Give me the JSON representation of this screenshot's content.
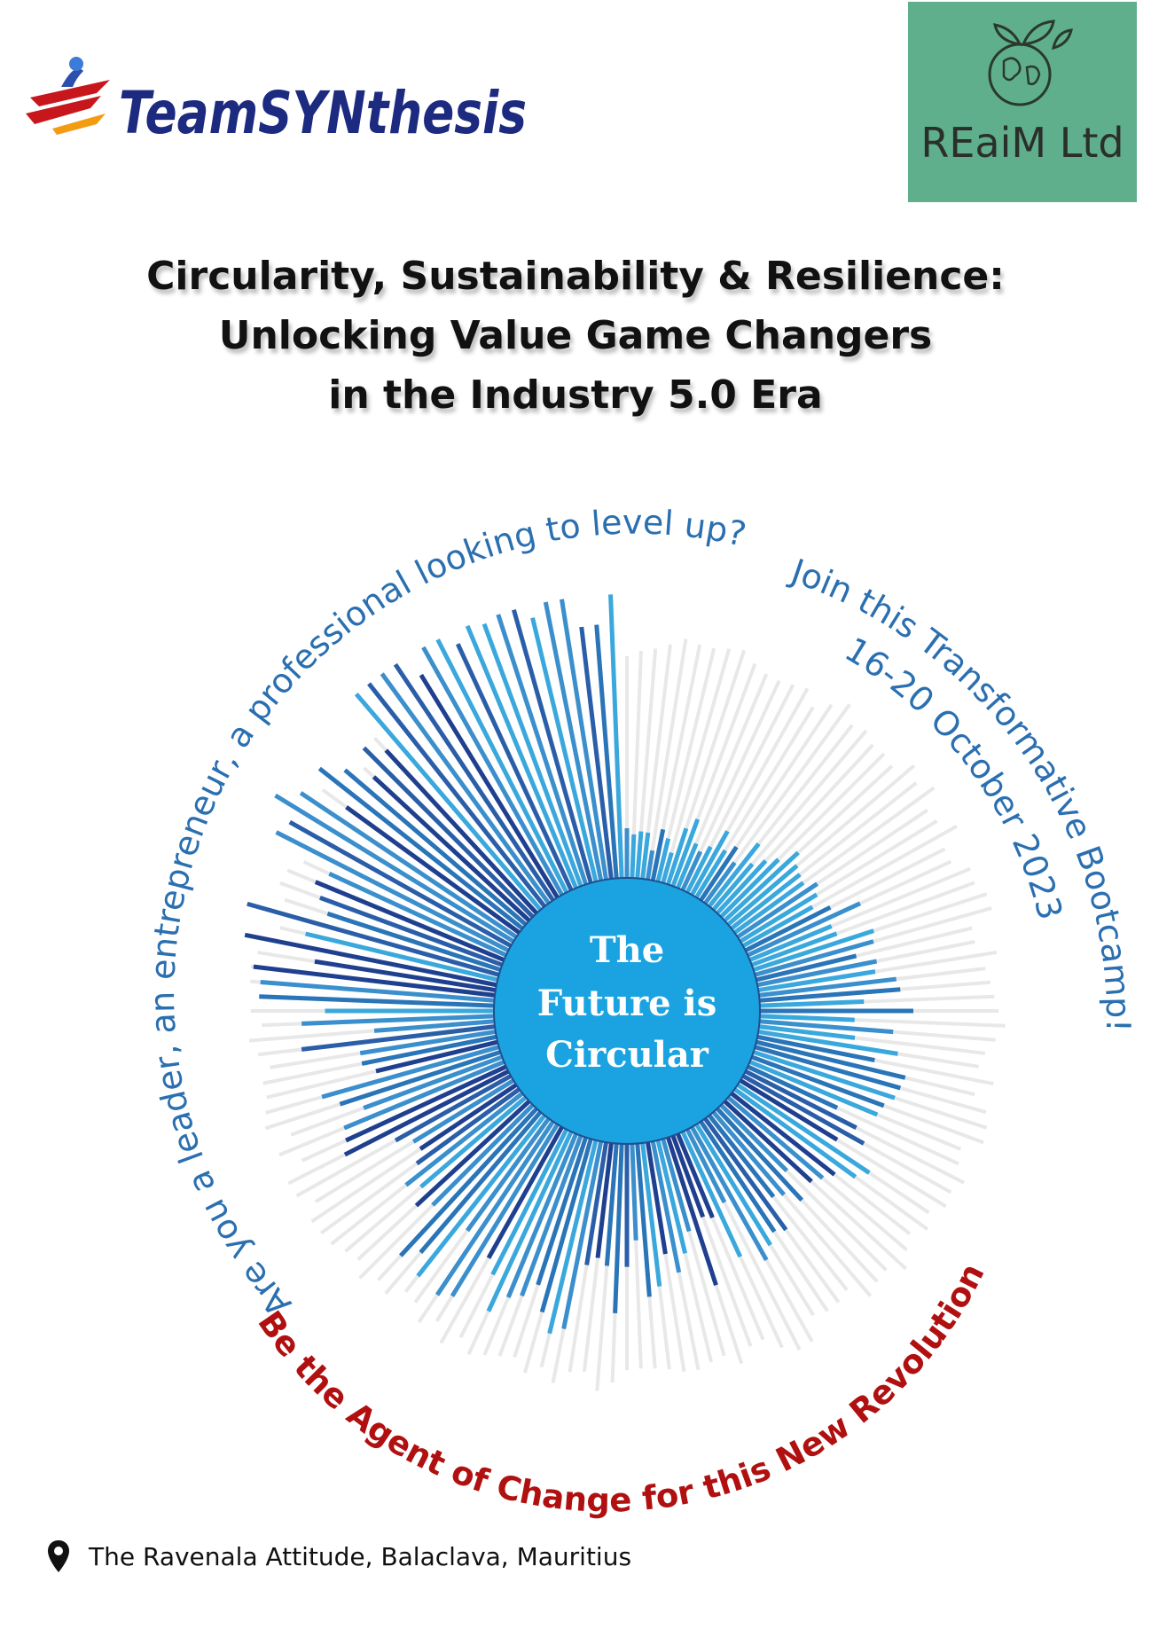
{
  "logos": {
    "team_synthesis": "TeamSYNthesis",
    "reaim": "REaiM Ltd"
  },
  "title": {
    "line1": "Circularity, Sustainability & Resilience:",
    "line2": "Unlocking Value Game Changers",
    "line3": "in the Industry 5.0 Era"
  },
  "circle": {
    "line1": "The",
    "line2": "Future is",
    "line3": "Circular"
  },
  "arc_text": {
    "left": "Are you a leader, an entrepreneur, a professional looking to level up?",
    "right": "Join this Transformative Bootcamp!",
    "date": "16-20 October 2023",
    "bottom": "Be the Agent of Change for this New Revolution"
  },
  "footer": {
    "icon": "map-pin-icon",
    "address": "The Ravenala Attitude, Balaclava, Mauritius"
  },
  "colors": {
    "blue_dark": "#1f3f8f",
    "blue_mid": "#2a74b8",
    "blue_light": "#3aa8dc",
    "circle": "#1aa3e0",
    "arc_blue": "#2a6fb0",
    "arc_red": "#b01010",
    "reaim_bg": "#5fae8c"
  }
}
